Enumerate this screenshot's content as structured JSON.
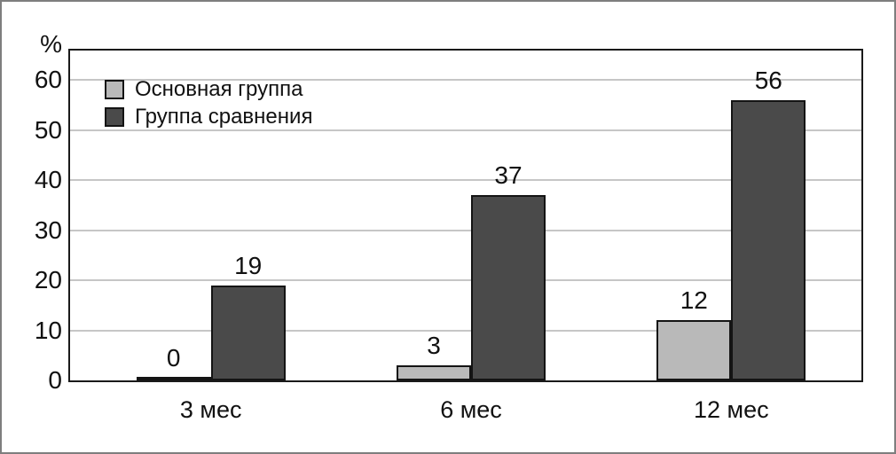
{
  "chart_data": {
    "type": "bar",
    "title": "",
    "ylabel": "%",
    "xlabel": "",
    "categories": [
      "3 мес",
      "6 мес",
      "12 мес"
    ],
    "series": [
      {
        "name": "Основная группа",
        "color": "#b9b9b9",
        "values": [
          0,
          3,
          12
        ]
      },
      {
        "name": "Группа сравнения",
        "color": "#4a4a4a",
        "values": [
          19,
          37,
          56
        ]
      }
    ],
    "bar_value_labels": [
      [
        "0",
        "3",
        "12"
      ],
      [
        "19",
        "37",
        "56"
      ]
    ],
    "yticks": [
      0,
      10,
      20,
      30,
      40,
      50,
      60
    ],
    "ylim": [
      0,
      66
    ],
    "grid": true,
    "gridline_color": "#c6c6c6",
    "legend_position": "top-left"
  },
  "frame": {
    "border_color": "#7e7e7e",
    "plot_border_color": "#1a1a1a"
  }
}
